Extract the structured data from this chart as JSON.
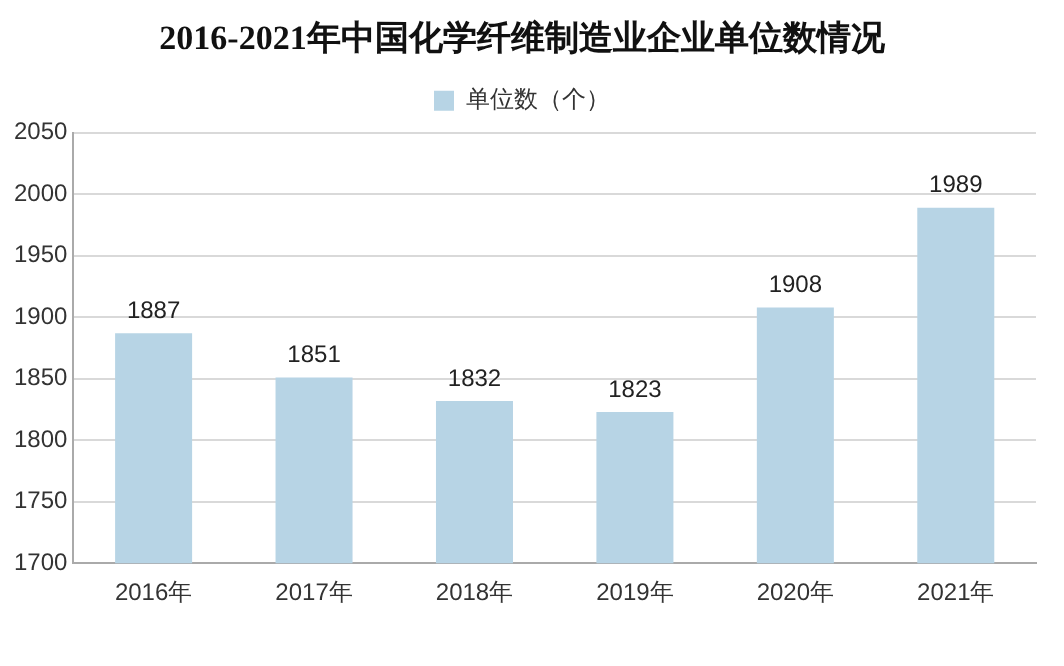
{
  "chart_data": {
    "type": "bar",
    "title": "2016-2021年中国化学纤维制造业企业单位数情况",
    "categories": [
      "2016年",
      "2017年",
      "2018年",
      "2019年",
      "2020年",
      "2021年"
    ],
    "series": [
      {
        "name": "单位数（个）",
        "color": "#b7d4e5",
        "values": [
          1887,
          1851,
          1832,
          1823,
          1908,
          1989
        ]
      }
    ],
    "ylim": [
      1700,
      2050
    ],
    "yticks": [
      1700,
      1750,
      1800,
      1850,
      1900,
      1950,
      2000,
      2050
    ],
    "grid": "y",
    "legend": "top",
    "data_labels": true
  }
}
